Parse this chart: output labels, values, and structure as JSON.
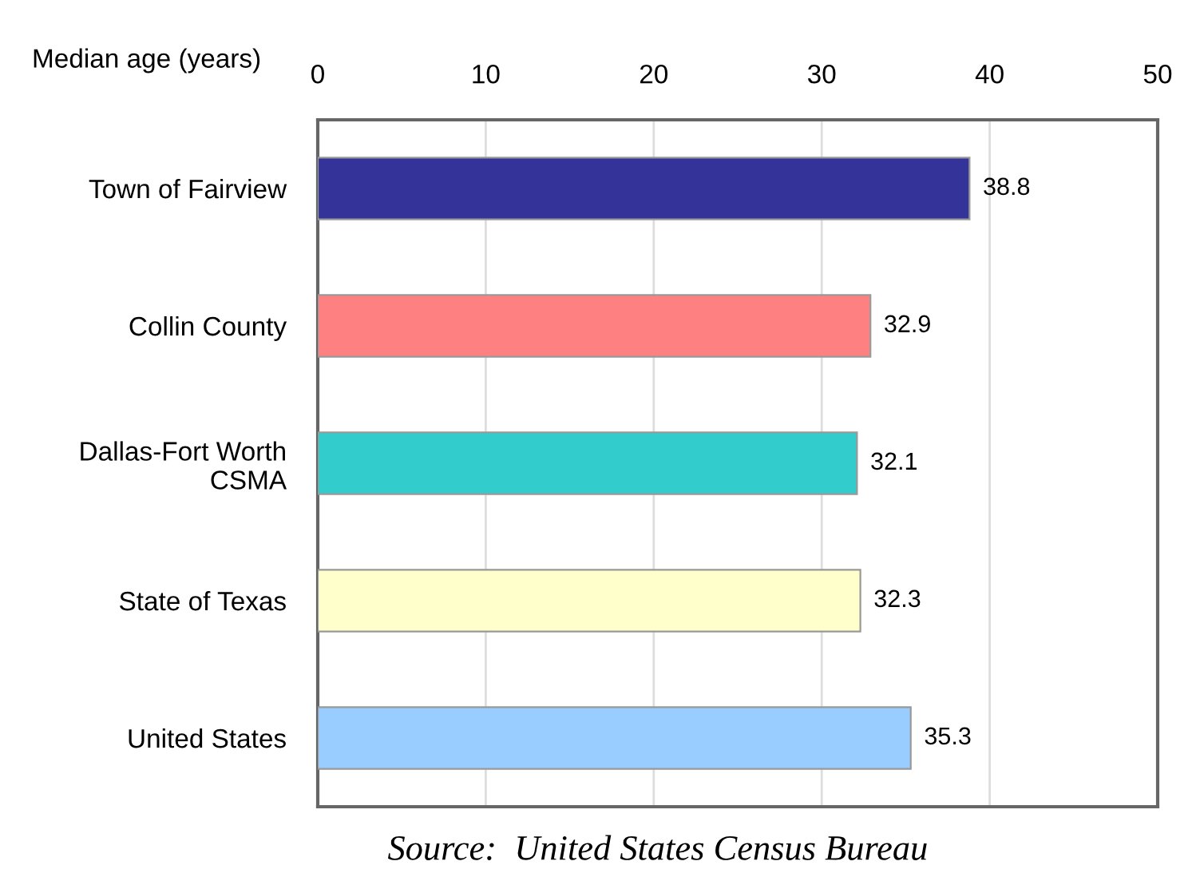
{
  "chart_data": {
    "type": "bar",
    "orientation": "horizontal",
    "xlabel": "Median age (years)",
    "categories": [
      "Town of Fairview",
      "Collin County",
      "Dallas-Fort Worth\nCSMA",
      "State of Texas",
      "United States"
    ],
    "values": [
      38.8,
      32.9,
      32.1,
      32.3,
      35.3
    ],
    "colors": [
      "#333399",
      "#ff8080",
      "#33cccc",
      "#ffffcc",
      "#99ccff"
    ],
    "xlim": [
      0,
      50
    ],
    "xticks": [
      0,
      10,
      20,
      30,
      40,
      50
    ],
    "grid": "x",
    "data_labels": true,
    "annotations": [
      "Source:  United States Census Bureau"
    ]
  }
}
